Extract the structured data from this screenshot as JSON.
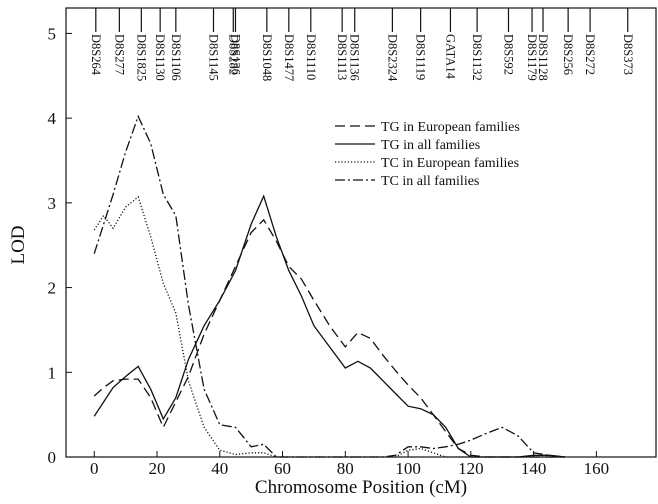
{
  "chart_data": {
    "type": "line",
    "x_label": "Chromosome Position (cM)",
    "y_label": "LOD",
    "xlim": [
      -9,
      179
    ],
    "ylim": [
      0,
      5.3
    ],
    "xticks": [
      0,
      20,
      40,
      60,
      80,
      100,
      120,
      140,
      160
    ],
    "yticks": [
      0,
      1,
      2,
      3,
      4,
      5
    ],
    "legend": "upper right",
    "markers": [
      {
        "name": "D8S264",
        "position": 0.5
      },
      {
        "name": "D8S277",
        "position": 8
      },
      {
        "name": "D8S1825",
        "position": 15
      },
      {
        "name": "D8S1130",
        "position": 21
      },
      {
        "name": "D8S1106",
        "position": 26
      },
      {
        "name": "D8S1145",
        "position": 38
      },
      {
        "name": "D8S282",
        "position": 44.3
      },
      {
        "name": "D8S136",
        "position": 45
      },
      {
        "name": "D8S1048",
        "position": 55
      },
      {
        "name": "D8S1477",
        "position": 62
      },
      {
        "name": "D8S1110",
        "position": 69
      },
      {
        "name": "D8S1113",
        "position": 79
      },
      {
        "name": "D8S1136",
        "position": 83
      },
      {
        "name": "D8S2324",
        "position": 95
      },
      {
        "name": "D8S1119",
        "position": 104
      },
      {
        "name": "GATA14",
        "position": 113.5
      },
      {
        "name": "D8S1132",
        "position": 122
      },
      {
        "name": "D8S592",
        "position": 132
      },
      {
        "name": "D8S1179",
        "position": 139.5
      },
      {
        "name": "D8S1128",
        "position": 143
      },
      {
        "name": "D8S256",
        "position": 151
      },
      {
        "name": "D8S272",
        "position": 158
      },
      {
        "name": "D8S373",
        "position": 170
      }
    ],
    "x": [
      0,
      3,
      6,
      10,
      14,
      18,
      22,
      26,
      30,
      35,
      40,
      45,
      50,
      54,
      58,
      62,
      66,
      70,
      75,
      80,
      84,
      88,
      92,
      96,
      100,
      104,
      108,
      112,
      116,
      120,
      125,
      130,
      135,
      140,
      145,
      150
    ],
    "series": [
      {
        "name": "TG in European families",
        "color": "#111111",
        "dash": "dashed",
        "values": [
          0.72,
          0.82,
          0.9,
          0.92,
          0.92,
          0.7,
          0.35,
          0.65,
          0.95,
          1.45,
          1.85,
          2.25,
          2.65,
          2.8,
          2.55,
          2.25,
          2.1,
          1.85,
          1.55,
          1.3,
          1.47,
          1.4,
          1.2,
          1.02,
          0.85,
          0.7,
          0.5,
          0.3,
          0.1,
          0.02,
          0,
          0,
          0,
          0,
          0,
          0
        ]
      },
      {
        "name": "TG in all families",
        "color": "#111111",
        "dash": "solid",
        "values": [
          0.48,
          0.65,
          0.82,
          0.95,
          1.07,
          0.8,
          0.45,
          0.7,
          1.15,
          1.55,
          1.85,
          2.2,
          2.75,
          3.08,
          2.6,
          2.2,
          1.9,
          1.55,
          1.3,
          1.05,
          1.13,
          1.05,
          0.9,
          0.75,
          0.6,
          0.57,
          0.5,
          0.35,
          0.1,
          0,
          0,
          0,
          0,
          0.02,
          0.02,
          0
        ]
      },
      {
        "name": "TC in European families",
        "color": "#111111",
        "dash": "dotted",
        "values": [
          2.68,
          2.85,
          2.7,
          2.95,
          3.07,
          2.6,
          2.05,
          1.7,
          0.9,
          0.35,
          0.08,
          0.03,
          0.05,
          0.05,
          0,
          0,
          0,
          0,
          0,
          0,
          0,
          0,
          0,
          0,
          0.08,
          0.1,
          0.05,
          0,
          0,
          0,
          0,
          0,
          0,
          0,
          0,
          0
        ]
      },
      {
        "name": "TC in all families",
        "color": "#111111",
        "dash": "dashdot",
        "values": [
          2.4,
          2.75,
          3.1,
          3.6,
          4.02,
          3.7,
          3.1,
          2.85,
          1.8,
          0.8,
          0.38,
          0.35,
          0.12,
          0.15,
          0,
          0,
          0,
          0,
          0,
          0,
          0,
          0,
          0,
          0.02,
          0.12,
          0.12,
          0.1,
          0.12,
          0.15,
          0.2,
          0.28,
          0.35,
          0.25,
          0.05,
          0.02,
          0
        ]
      }
    ]
  }
}
